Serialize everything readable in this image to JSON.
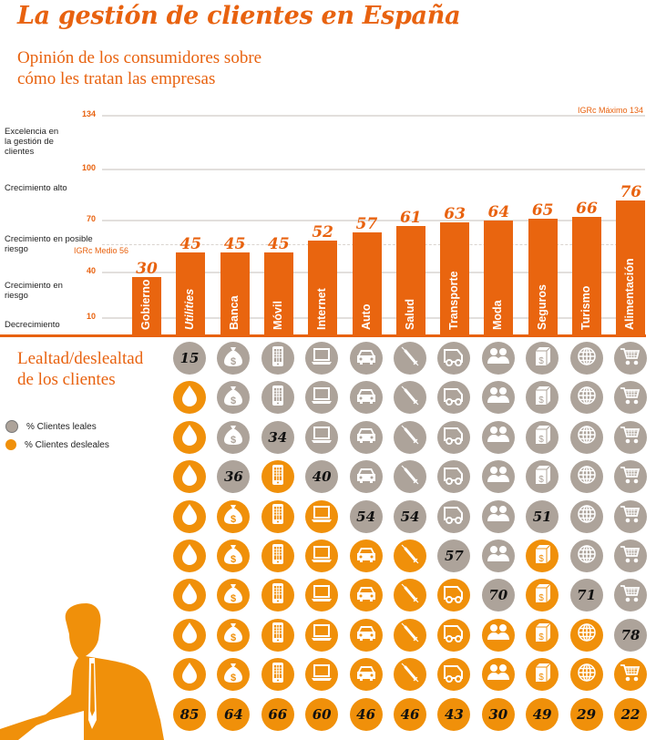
{
  "header": {
    "title": "La gestión de clientes en España",
    "subtitle_line1": "Opinión de los consumidores sobre",
    "subtitle_line2": "cómo les tratan las empresas"
  },
  "colors": {
    "bar": "#e9650f",
    "accent": "#e8620f",
    "loyal": "#ada39a",
    "disloyal": "#f0900a"
  },
  "chart_data": [
    {
      "type": "bar",
      "title": "",
      "categories": [
        "Gobierno",
        "Utilities",
        "Banca",
        "Móvil",
        "Internet",
        "Auto",
        "Salud",
        "Transporte",
        "Moda",
        "Seguros",
        "Turismo",
        "Alimentación"
      ],
      "values": [
        30,
        45,
        45,
        45,
        52,
        57,
        61,
        63,
        64,
        65,
        66,
        76
      ],
      "yticks": [
        134,
        100,
        70,
        40,
        10
      ],
      "ylim": [
        0,
        134
      ],
      "zones": [
        "Excelencia en la gestión de clientes",
        "Crecimiento alto",
        "Crecimiento en posible riesgo",
        "Crecimiento en riesgo",
        "Decrecimiento"
      ],
      "reference_lines": [
        {
          "label": "IGRc Máximo 134",
          "value": 134
        },
        {
          "label": "IGRc Medio 56",
          "value": 56
        }
      ],
      "grid": true
    },
    {
      "type": "table",
      "title": "Lealtad/deslealtad de los clientes",
      "legend": [
        {
          "label": "% Clientes leales",
          "color": "#ada39a"
        },
        {
          "label": "% Clientes desleales",
          "color": "#f0900a"
        }
      ],
      "rows": [
        {
          "category": "Utilities",
          "icon": "drop",
          "loyal": 15,
          "disloyal": 85,
          "loyal_circles": 1
        },
        {
          "category": "Banca",
          "icon": "money-bag",
          "loyal": 36,
          "disloyal": 64,
          "loyal_circles": 4
        },
        {
          "category": "Móvil",
          "icon": "mobile-phone",
          "loyal": 34,
          "disloyal": 66,
          "loyal_circles": 3
        },
        {
          "category": "Internet",
          "icon": "laptop",
          "loyal": 40,
          "disloyal": 60,
          "loyal_circles": 4
        },
        {
          "category": "Auto",
          "icon": "car",
          "loyal": 54,
          "disloyal": 46,
          "loyal_circles": 5
        },
        {
          "category": "Salud",
          "icon": "syringe",
          "loyal": 54,
          "disloyal": 46,
          "loyal_circles": 5
        },
        {
          "category": "Transporte",
          "icon": "truck",
          "loyal": 57,
          "disloyal": 43,
          "loyal_circles": 6
        },
        {
          "category": "Moda",
          "icon": "people",
          "loyal": 70,
          "disloyal": 30,
          "loyal_circles": 7
        },
        {
          "category": "Seguros",
          "icon": "box",
          "loyal": 51,
          "disloyal": 49,
          "loyal_circles": 5
        },
        {
          "category": "Turismo",
          "icon": "globe",
          "loyal": 71,
          "disloyal": 29,
          "loyal_circles": 7
        },
        {
          "category": "Alimentación",
          "icon": "cart",
          "loyal": 78,
          "disloyal": 22,
          "loyal_circles": 8
        }
      ]
    }
  ]
}
